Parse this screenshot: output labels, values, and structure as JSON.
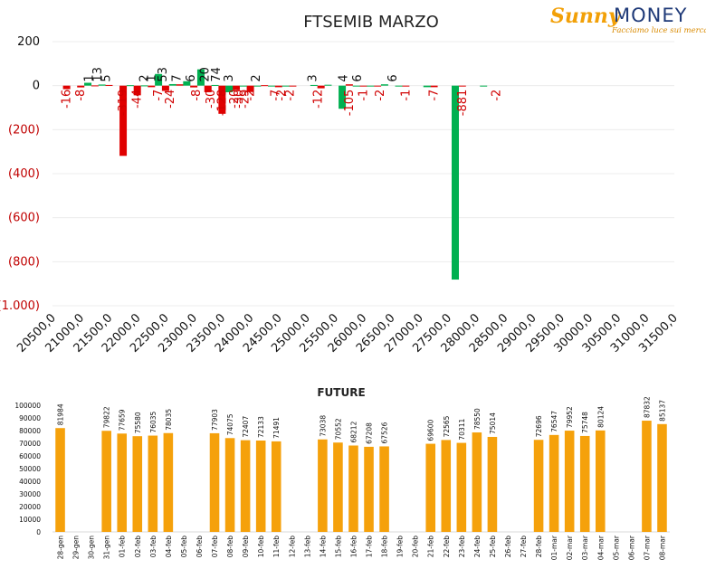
{
  "logo": {
    "name_part1": "Sunny",
    "name_part2": "MONEY",
    "tagline": "Facciamo luce sui mercati"
  },
  "colors": {
    "positive": "#00b050",
    "negative": "#e00000",
    "bar_future": "#f5a10b",
    "neg_axis_label": "#c00000"
  },
  "chart_data": [
    {
      "type": "bar",
      "title": "FTSEMIB MARZO",
      "xlabel": "",
      "ylabel": "",
      "ylim": [
        -1000,
        200
      ],
      "y_ticks": [
        200,
        0,
        -200,
        -400,
        -600,
        -800,
        -1000
      ],
      "y_tick_labels": [
        "200",
        "0",
        "(200)",
        "(400)",
        "(600)",
        "(800)",
        "(1.000)"
      ],
      "x_tick_labels": [
        "20500,0",
        "21000,0",
        "21500,0",
        "22000,0",
        "22500,0",
        "23000,0",
        "23500,0",
        "24000,0",
        "24500,0",
        "25000,0",
        "25500,0",
        "26000,0",
        "26500,0",
        "27000,0",
        "27500,0",
        "28000,0",
        "28500,0",
        "29000,0",
        "29500,0",
        "30000,0",
        "30500,0",
        "31000,0",
        "31500,0"
      ],
      "x_range": [
        20500,
        31500
      ],
      "grid": true,
      "legend": "none",
      "series": [
        {
          "color": "#e00000",
          "points": [
            {
              "x": 20750,
              "y": -16
            },
            {
              "x": 21000,
              "y": -8
            },
            {
              "x": 21250,
              "y": 1
            },
            {
              "x": 21500,
              "y": 3
            },
            {
              "x": 21750,
              "y": -319
            },
            {
              "x": 22000,
              "y": -44
            },
            {
              "x": 22250,
              "y": -7
            },
            {
              "x": 22500,
              "y": -24
            },
            {
              "x": 22750,
              "y": 6
            },
            {
              "x": 23000,
              "y": -8
            },
            {
              "x": 23250,
              "y": -30
            },
            {
              "x": 23500,
              "y": -128
            },
            {
              "x": 23750,
              "y": -20
            },
            {
              "x": 24000,
              "y": -29
            },
            {
              "x": 24250,
              "y": 2
            },
            {
              "x": 24500,
              "y": -7
            },
            {
              "x": 24750,
              "y": -2
            },
            {
              "x": 25250,
              "y": -12
            },
            {
              "x": 25750,
              "y": 6
            },
            {
              "x": 26000,
              "y": -1
            },
            {
              "x": 26250,
              "y": -2
            },
            {
              "x": 26750,
              "y": -1
            },
            {
              "x": 27250,
              "y": -7
            },
            {
              "x": 27750,
              "y": -2
            }
          ]
        },
        {
          "color": "#00b050",
          "points": [
            {
              "x": 21125,
              "y": 13
            },
            {
              "x": 21375,
              "y": 5
            },
            {
              "x": 21875,
              "y": 2
            },
            {
              "x": 22125,
              "y": 1
            },
            {
              "x": 22375,
              "y": 53
            },
            {
              "x": 22625,
              "y": 7
            },
            {
              "x": 22875,
              "y": 20
            },
            {
              "x": 23125,
              "y": 74
            },
            {
              "x": 23375,
              "y": 3
            },
            {
              "x": 23625,
              "y": -30
            },
            {
              "x": 23875,
              "y": -2
            },
            {
              "x": 24125,
              "y": -1
            },
            {
              "x": 24375,
              "y": -4
            },
            {
              "x": 24625,
              "y": -2
            },
            {
              "x": 25125,
              "y": 3
            },
            {
              "x": 25375,
              "y": 4
            },
            {
              "x": 25625,
              "y": -105
            },
            {
              "x": 25875,
              "y": -1
            },
            {
              "x": 26125,
              "y": -2
            },
            {
              "x": 26375,
              "y": 6
            },
            {
              "x": 26625,
              "y": -1
            },
            {
              "x": 27125,
              "y": -7
            },
            {
              "x": 27625,
              "y": -881
            },
            {
              "x": 28125,
              "y": -2
            }
          ]
        }
      ],
      "labels": [
        {
          "x": 20750,
          "text": "-16"
        },
        {
          "x": 21000,
          "text": "-8"
        },
        {
          "x": 21150,
          "text": "1"
        },
        {
          "x": 21300,
          "text": "13"
        },
        {
          "x": 21450,
          "text": "5"
        },
        {
          "x": 21750,
          "text": "-319"
        },
        {
          "x": 22000,
          "text": "-44"
        },
        {
          "x": 22125,
          "text": "2"
        },
        {
          "x": 22250,
          "text": "1"
        },
        {
          "x": 22375,
          "text": "-7"
        },
        {
          "x": 22450,
          "text": "53"
        },
        {
          "x": 22580,
          "text": "-24"
        },
        {
          "x": 22700,
          "text": "7"
        },
        {
          "x": 22950,
          "text": "6"
        },
        {
          "x": 23050,
          "text": "-8"
        },
        {
          "x": 23200,
          "text": "20"
        },
        {
          "x": 23300,
          "text": "-30"
        },
        {
          "x": 23400,
          "text": "74"
        },
        {
          "x": 23500,
          "text": "-128"
        },
        {
          "x": 23620,
          "text": "3"
        },
        {
          "x": 23720,
          "text": "-20"
        },
        {
          "x": 23800,
          "text": "-30"
        },
        {
          "x": 23900,
          "text": "-29"
        },
        {
          "x": 24000,
          "text": "-2"
        },
        {
          "x": 24100,
          "text": "2"
        },
        {
          "x": 24450,
          "text": "-7"
        },
        {
          "x": 24550,
          "text": "-2"
        },
        {
          "x": 24700,
          "text": "-2"
        },
        {
          "x": 25100,
          "text": "3"
        },
        {
          "x": 25200,
          "text": "-12"
        },
        {
          "x": 25650,
          "text": "4"
        },
        {
          "x": 25750,
          "text": "-105"
        },
        {
          "x": 25900,
          "text": "6"
        },
        {
          "x": 26000,
          "text": "-1"
        },
        {
          "x": 26300,
          "text": "-2"
        },
        {
          "x": 26520,
          "text": "6"
        },
        {
          "x": 26750,
          "text": "-1"
        },
        {
          "x": 27250,
          "text": "-7"
        },
        {
          "x": 27750,
          "text": "-881"
        },
        {
          "x": 28350,
          "text": "-2"
        }
      ]
    },
    {
      "type": "bar",
      "title": "FUTURE",
      "xlabel": "",
      "ylabel": "",
      "ylim": [
        0,
        100000
      ],
      "y_ticks": [
        0,
        10000,
        20000,
        30000,
        40000,
        50000,
        60000,
        70000,
        80000,
        90000,
        100000
      ],
      "grid": false,
      "legend": "none",
      "categories": [
        "28-gen",
        "29-gen",
        "30-gen",
        "31-gen",
        "01-feb",
        "02-feb",
        "03-feb",
        "04-feb",
        "05-feb",
        "06-feb",
        "07-feb",
        "08-feb",
        "09-feb",
        "10-feb",
        "11-feb",
        "12-feb",
        "13-feb",
        "14-feb",
        "15-feb",
        "16-feb",
        "17-feb",
        "18-feb",
        "19-feb",
        "20-feb",
        "21-feb",
        "22-feb",
        "23-feb",
        "24-feb",
        "25-feb",
        "26-feb",
        "27-feb",
        "28-feb",
        "01-mar",
        "02-mar",
        "03-mar",
        "04-mar",
        "05-mar",
        "06-mar",
        "07-mar",
        "08-mar"
      ],
      "values": [
        81984,
        null,
        null,
        79822,
        77659,
        75580,
        76035,
        78035,
        null,
        null,
        77903,
        74075,
        72407,
        72133,
        71491,
        null,
        null,
        73038,
        70552,
        68212,
        67208,
        67526,
        null,
        null,
        69600,
        72565,
        70311,
        78550,
        75014,
        null,
        null,
        72696,
        76547,
        79952,
        75748,
        80124,
        null,
        null,
        87832,
        85137
      ]
    }
  ]
}
